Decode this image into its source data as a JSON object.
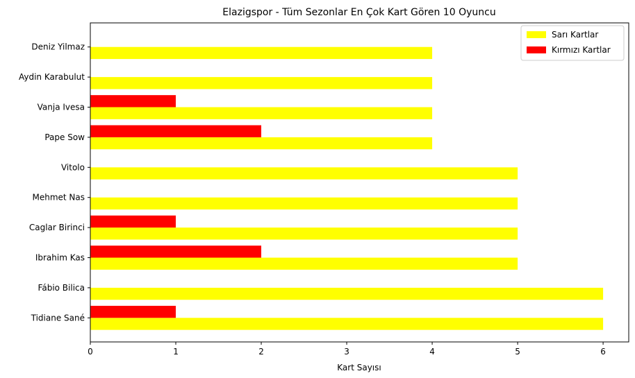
{
  "chart_data": {
    "type": "bar",
    "orientation": "horizontal",
    "title": "Elazigspor - Tüm Sezonlar En Çok Kart Gören 10 Oyuncu",
    "xlabel": "Kart Sayısı",
    "ylabel": "",
    "xlim": [
      0,
      6.3
    ],
    "xticks": [
      0,
      1,
      2,
      3,
      4,
      5,
      6
    ],
    "grid": false,
    "legend_position": "top-right",
    "categories": [
      "Tidiane Sané",
      "Fábio Bilica",
      "Ibrahim Kas",
      "Caglar Birinci",
      "Mehmet Nas",
      "Vitolo",
      "Pape Sow",
      "Vanja Ivesa",
      "Aydin Karabulut",
      "Deniz Yilmaz"
    ],
    "series": [
      {
        "name": "Sarı Kartlar",
        "color": "#ffff00",
        "values": [
          6,
          6,
          5,
          5,
          5,
          5,
          4,
          4,
          4,
          4
        ]
      },
      {
        "name": "Kırmızı Kartlar",
        "color": "#ff0000",
        "values": [
          1,
          0,
          2,
          1,
          0,
          0,
          2,
          1,
          0,
          0
        ]
      }
    ]
  }
}
